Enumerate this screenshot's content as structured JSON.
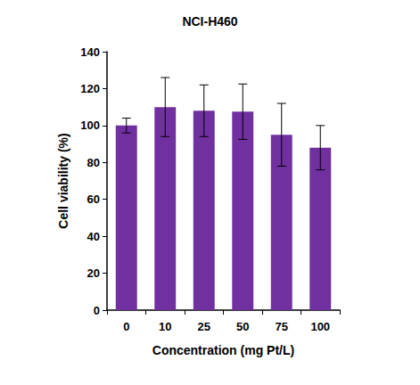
{
  "chart_data": {
    "type": "bar",
    "title": "NCI-H460",
    "x_label": "Concentration (mg Pt/L)",
    "y_label": "Cell viability (%)",
    "categories": [
      "0",
      "10",
      "25",
      "50",
      "75",
      "100"
    ],
    "values": [
      100,
      110,
      108,
      107.5,
      95,
      88
    ],
    "errors": [
      4,
      16,
      14,
      15,
      17,
      12
    ],
    "color": "#7030a0",
    "ylim": [
      0,
      140
    ],
    "yticks": [
      0,
      20,
      40,
      60,
      80,
      100,
      120,
      140
    ],
    "grid": false
  }
}
